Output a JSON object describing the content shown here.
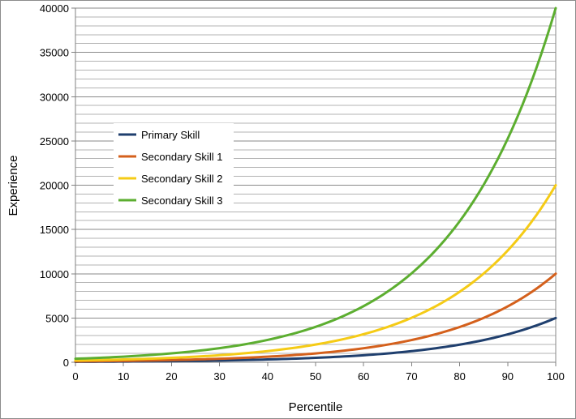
{
  "chart_data": {
    "type": "line",
    "title": "",
    "xlabel": "Percentile",
    "ylabel": "Experience",
    "xlim": [
      0,
      100
    ],
    "ylim": [
      0,
      40000
    ],
    "x_ticks": [
      0,
      10,
      20,
      30,
      40,
      50,
      60,
      70,
      80,
      90,
      100
    ],
    "y_ticks": [
      0,
      5000,
      10000,
      15000,
      20000,
      25000,
      30000,
      35000,
      40000
    ],
    "y_minor_step": 1000,
    "grid": true,
    "legend_position": "middle-left",
    "x": [
      0,
      10,
      20,
      30,
      40,
      50,
      60,
      70,
      80,
      90,
      100
    ],
    "series": [
      {
        "name": "Primary Skill",
        "color": "#1f3f6e",
        "values": [
          50,
          79,
          125,
          199,
          315,
          500,
          792,
          1256,
          1991,
          3155,
          5000
        ]
      },
      {
        "name": "Secondary Skill 1",
        "color": "#d4601c",
        "values": [
          100,
          158,
          251,
          398,
          631,
          1000,
          1585,
          2512,
          3981,
          6310,
          10000
        ]
      },
      {
        "name": "Secondary Skill 2",
        "color": "#f5cb16",
        "values": [
          200,
          317,
          502,
          796,
          1262,
          2000,
          3170,
          5024,
          7962,
          12620,
          20000
        ]
      },
      {
        "name": "Secondary Skill 3",
        "color": "#5cae30",
        "values": [
          400,
          634,
          1004,
          1592,
          2524,
          4000,
          6340,
          10048,
          15924,
          25240,
          40000
        ]
      }
    ]
  }
}
